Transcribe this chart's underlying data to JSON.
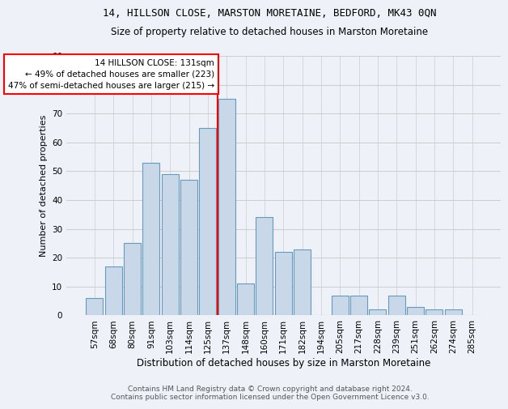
{
  "title1": "14, HILLSON CLOSE, MARSTON MORETAINE, BEDFORD, MK43 0QN",
  "title2": "Size of property relative to detached houses in Marston Moretaine",
  "xlabel": "Distribution of detached houses by size in Marston Moretaine",
  "ylabel": "Number of detached properties",
  "footer1": "Contains HM Land Registry data © Crown copyright and database right 2024.",
  "footer2": "Contains public sector information licensed under the Open Government Licence v3.0.",
  "categories": [
    "57sqm",
    "68sqm",
    "80sqm",
    "91sqm",
    "103sqm",
    "114sqm",
    "125sqm",
    "137sqm",
    "148sqm",
    "160sqm",
    "171sqm",
    "182sqm",
    "194sqm",
    "205sqm",
    "217sqm",
    "228sqm",
    "239sqm",
    "251sqm",
    "262sqm",
    "274sqm",
    "285sqm"
  ],
  "values": [
    6,
    17,
    25,
    53,
    49,
    47,
    65,
    75,
    11,
    34,
    22,
    23,
    0,
    7,
    7,
    2,
    7,
    3,
    2,
    2,
    0
  ],
  "bar_color": "#c8d8e8",
  "bar_edge_color": "#6699bb",
  "annotation_text1": "14 HILLSON CLOSE: 131sqm",
  "annotation_text2": "← 49% of detached houses are smaller (223)",
  "annotation_text3": "47% of semi-detached houses are larger (215) →",
  "annotation_box_color": "white",
  "annotation_box_edge": "red",
  "vline_color": "red",
  "vline_x_index": 6.5,
  "ylim": [
    0,
    90
  ],
  "yticks": [
    0,
    10,
    20,
    30,
    40,
    50,
    60,
    70,
    80,
    90
  ],
  "grid_color": "#cccccc",
  "bg_color": "#eef2f8",
  "axes_bg_color": "#eef2f8",
  "title1_fontsize": 9,
  "title2_fontsize": 8.5,
  "xlabel_fontsize": 8.5,
  "ylabel_fontsize": 8,
  "footer_fontsize": 6.5,
  "tick_fontsize": 7.5,
  "annot_fontsize": 7.5
}
